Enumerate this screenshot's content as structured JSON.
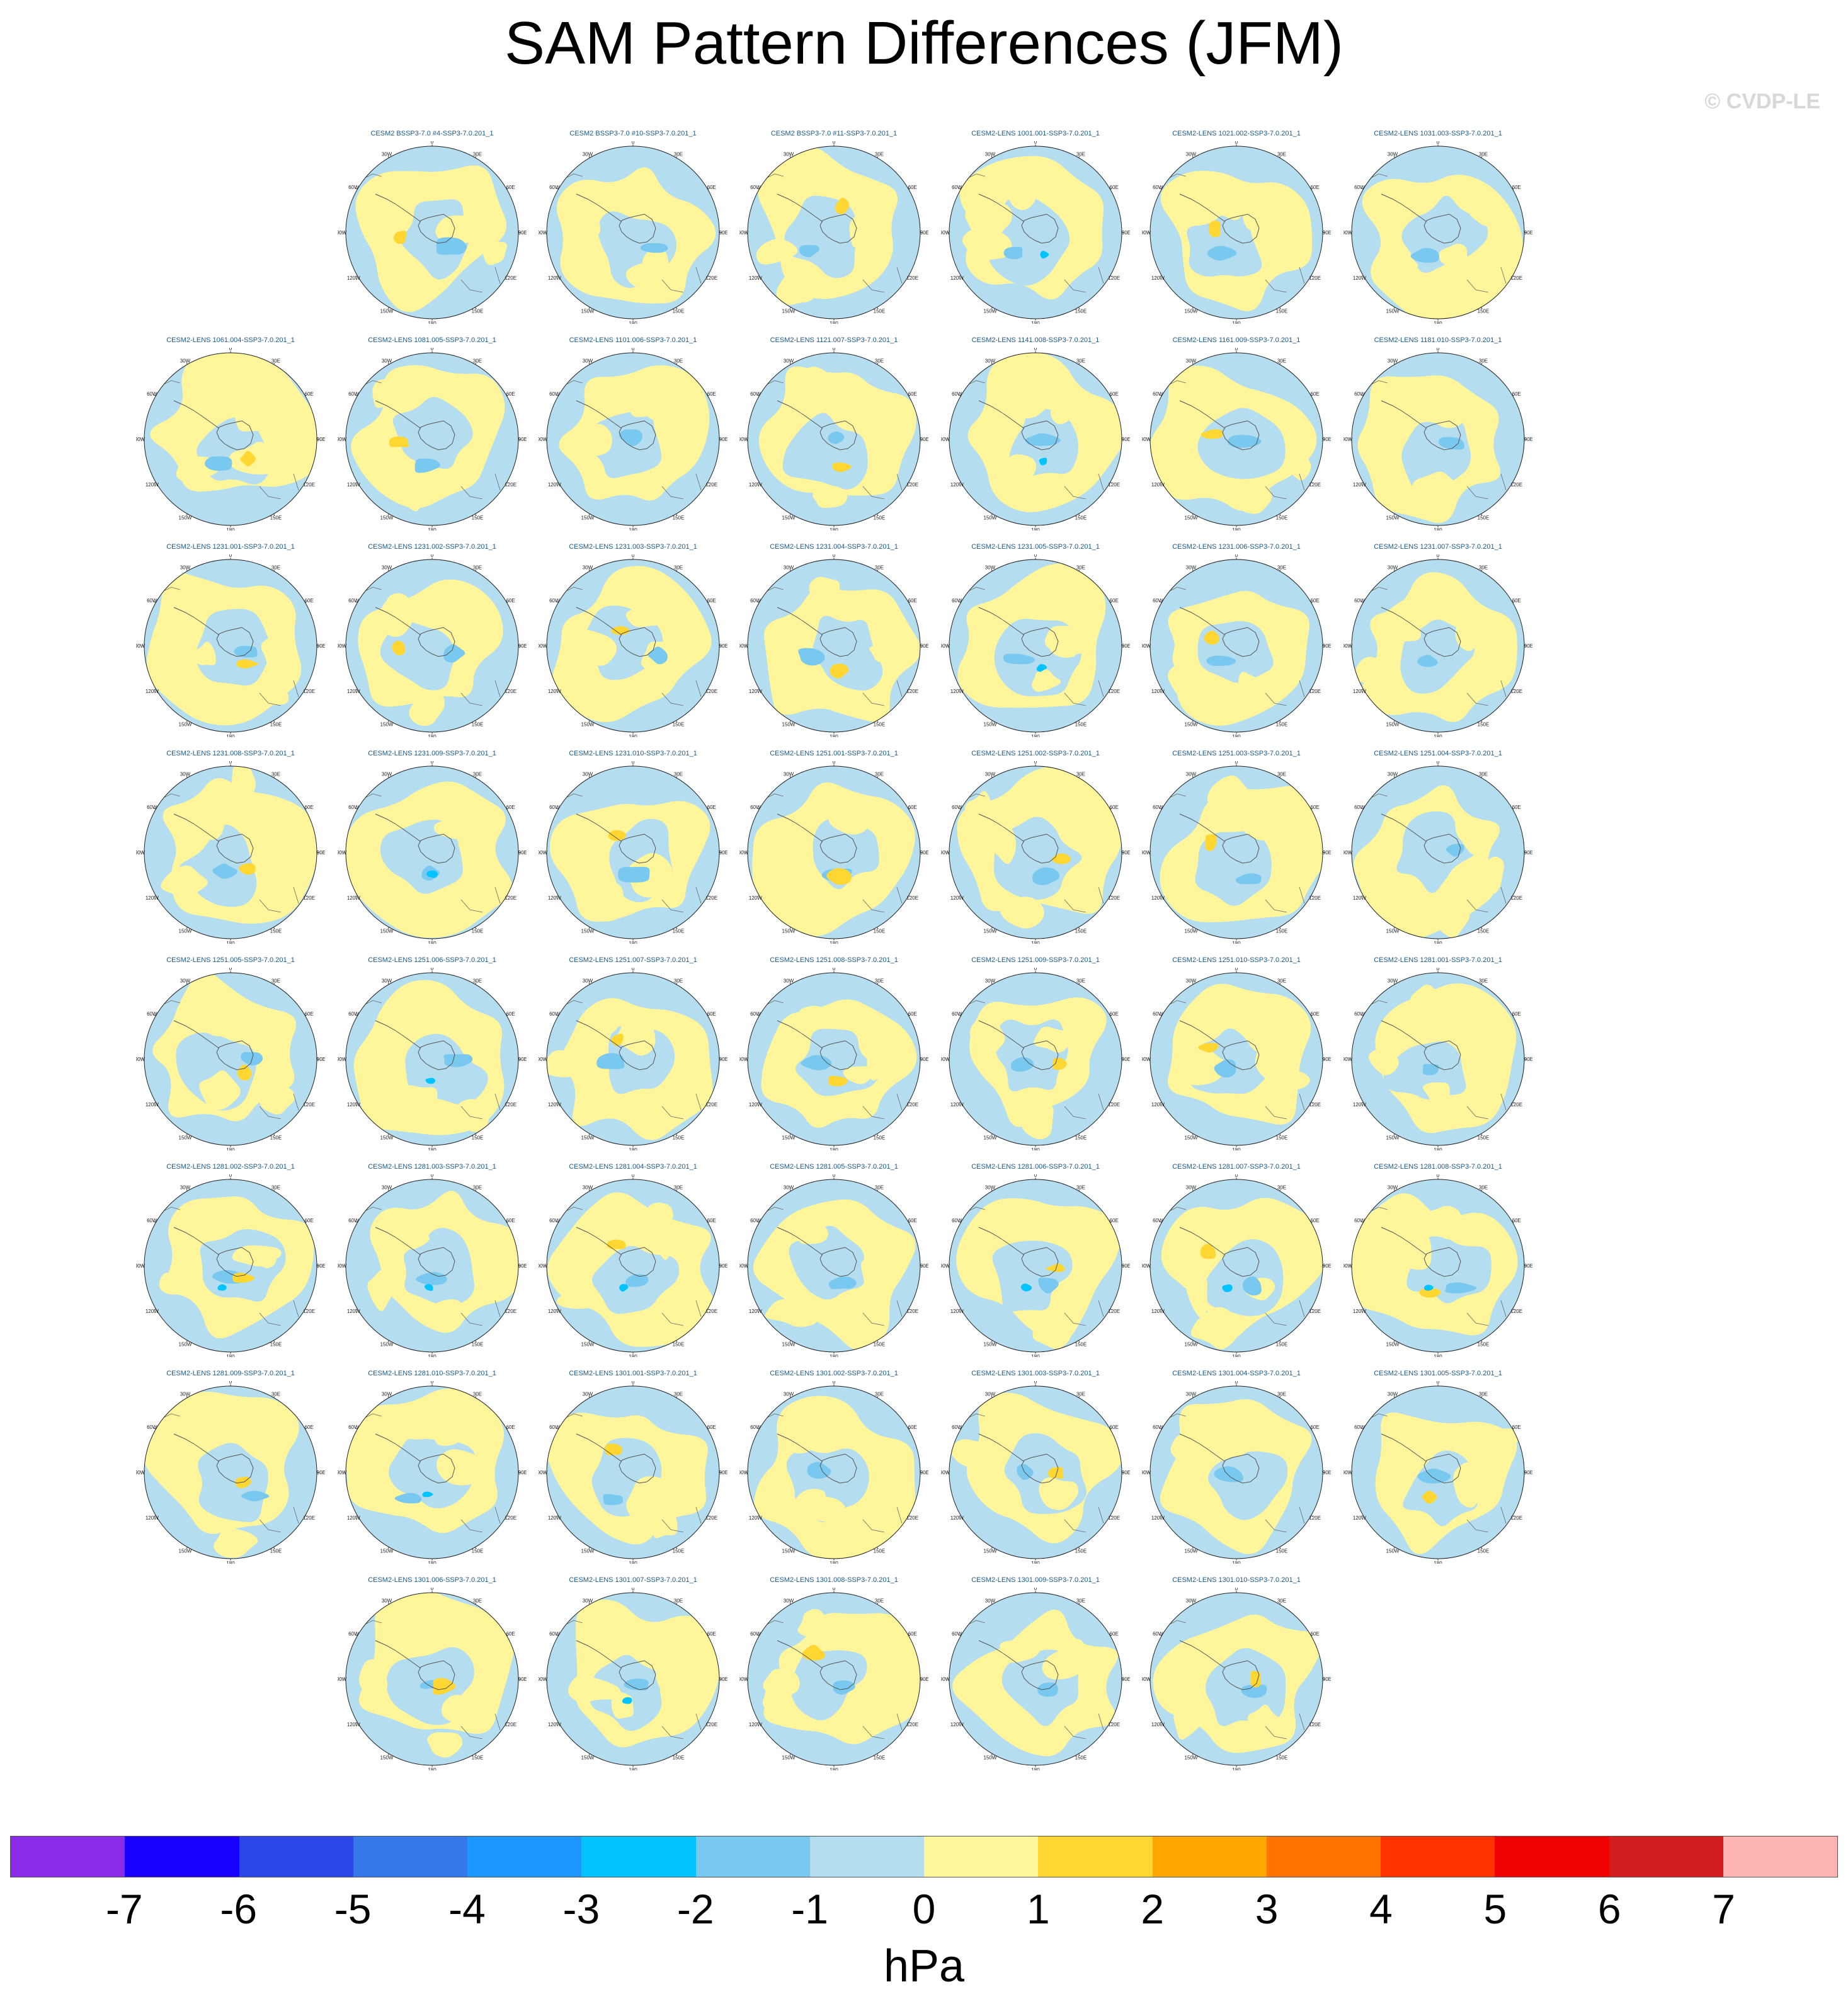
{
  "title": "SAM Pattern Differences (JFM)",
  "credit": "© CVDP-LE",
  "lon_labels": [
    "0",
    "30E",
    "60E",
    "90E",
    "120E",
    "150E",
    "180",
    "150W",
    "120W",
    "90W",
    "60W",
    "30W"
  ],
  "panels": [
    [
      "CESM2 BSSP3-7.0 #4-SSP3-7.0.201_1",
      "CESM2 BSSP3-7.0 #10-SSP3-7.0.201_1",
      "CESM2 BSSP3-7.0 #11-SSP3-7.0.201_1",
      "CESM2-LENS 1001.001-SSP3-7.0.201_1",
      "CESM2-LENS 1021.002-SSP3-7.0.201_1",
      "CESM2-LENS 1031.003-SSP3-7.0.201_1"
    ],
    [
      "CESM2-LENS 1061.004-SSP3-7.0.201_1",
      "CESM2-LENS 1081.005-SSP3-7.0.201_1",
      "CESM2-LENS 1101.006-SSP3-7.0.201_1",
      "CESM2-LENS 1121.007-SSP3-7.0.201_1",
      "CESM2-LENS 1141.008-SSP3-7.0.201_1",
      "CESM2-LENS 1161.009-SSP3-7.0.201_1",
      "CESM2-LENS 1181.010-SSP3-7.0.201_1"
    ],
    [
      "CESM2-LENS 1231.001-SSP3-7.0.201_1",
      "CESM2-LENS 1231.002-SSP3-7.0.201_1",
      "CESM2-LENS 1231.003-SSP3-7.0.201_1",
      "CESM2-LENS 1231.004-SSP3-7.0.201_1",
      "CESM2-LENS 1231.005-SSP3-7.0.201_1",
      "CESM2-LENS 1231.006-SSP3-7.0.201_1",
      "CESM2-LENS 1231.007-SSP3-7.0.201_1"
    ],
    [
      "CESM2-LENS 1231.008-SSP3-7.0.201_1",
      "CESM2-LENS 1231.009-SSP3-7.0.201_1",
      "CESM2-LENS 1231.010-SSP3-7.0.201_1",
      "CESM2-LENS 1251.001-SSP3-7.0.201_1",
      "CESM2-LENS 1251.002-SSP3-7.0.201_1",
      "CESM2-LENS 1251.003-SSP3-7.0.201_1",
      "CESM2-LENS 1251.004-SSP3-7.0.201_1"
    ],
    [
      "CESM2-LENS 1251.005-SSP3-7.0.201_1",
      "CESM2-LENS 1251.006-SSP3-7.0.201_1",
      "CESM2-LENS 1251.007-SSP3-7.0.201_1",
      "CESM2-LENS 1251.008-SSP3-7.0.201_1",
      "CESM2-LENS 1251.009-SSP3-7.0.201_1",
      "CESM2-LENS 1251.010-SSP3-7.0.201_1",
      "CESM2-LENS 1281.001-SSP3-7.0.201_1"
    ],
    [
      "CESM2-LENS 1281.002-SSP3-7.0.201_1",
      "CESM2-LENS 1281.003-SSP3-7.0.201_1",
      "CESM2-LENS 1281.004-SSP3-7.0.201_1",
      "CESM2-LENS 1281.005-SSP3-7.0.201_1",
      "CESM2-LENS 1281.006-SSP3-7.0.201_1",
      "CESM2-LENS 1281.007-SSP3-7.0.201_1",
      "CESM2-LENS 1281.008-SSP3-7.0.201_1"
    ],
    [
      "CESM2-LENS 1281.009-SSP3-7.0.201_1",
      "CESM2-LENS 1281.010-SSP3-7.0.201_1",
      "CESM2-LENS 1301.001-SSP3-7.0.201_1",
      "CESM2-LENS 1301.002-SSP3-7.0.201_1",
      "CESM2-LENS 1301.003-SSP3-7.0.201_1",
      "CESM2-LENS 1301.004-SSP3-7.0.201_1",
      "CESM2-LENS 1301.005-SSP3-7.0.201_1"
    ],
    [
      "CESM2-LENS 1301.006-SSP3-7.0.201_1",
      "CESM2-LENS 1301.007-SSP3-7.0.201_1",
      "CESM2-LENS 1301.008-SSP3-7.0.201_1",
      "CESM2-LENS 1301.009-SSP3-7.0.201_1",
      "CESM2-LENS 1301.010-SSP3-7.0.201_1"
    ]
  ],
  "colorbar": {
    "colors": [
      "#8a2be8",
      "#1a00ff",
      "#2c46ea",
      "#3478ea",
      "#1e96ff",
      "#00c3ff",
      "#78c8f0",
      "#b4ddf0",
      "#fff59a",
      "#ffd632",
      "#ffa600",
      "#ff7300",
      "#ff3200",
      "#f00000",
      "#d21e1e",
      "#ffb4b4"
    ],
    "ticks": [
      "-7",
      "-6",
      "-5",
      "-4",
      "-3",
      "-2",
      "-1",
      "0",
      "1",
      "2",
      "3",
      "4",
      "5",
      "6",
      "7"
    ],
    "units": "hPa"
  }
}
